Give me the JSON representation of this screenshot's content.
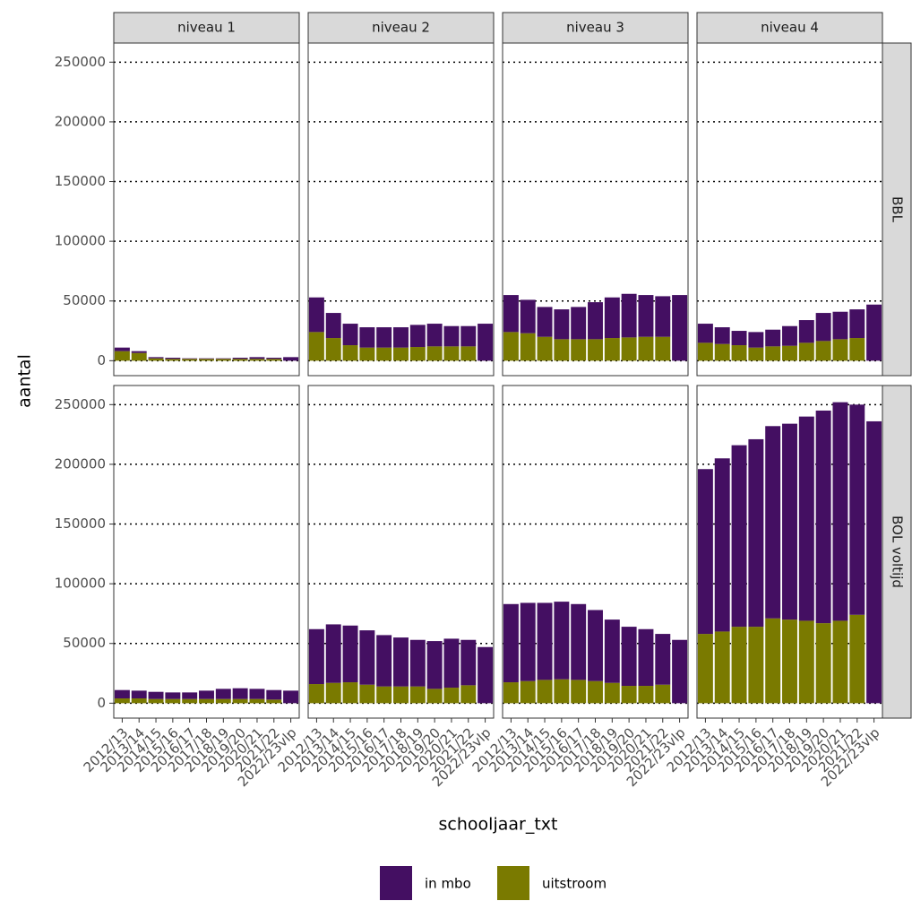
{
  "chart_data": {
    "type": "bar",
    "stacked": true,
    "xlabel": "schooljaar_txt",
    "ylabel": "aantal",
    "columns": [
      "niveau 1",
      "niveau 2",
      "niveau 3",
      "niveau 4"
    ],
    "rows": [
      "BBL",
      "BOL voltijd"
    ],
    "categories": [
      "2012/13",
      "2013/14",
      "2014/15",
      "2015/16",
      "2016/17",
      "2017/18",
      "2018/19",
      "2019/20",
      "2020/21",
      "2021/22",
      "2022/23vlp"
    ],
    "ylim": [
      -12500,
      266000
    ],
    "yticks": [
      0,
      50000,
      100000,
      150000,
      200000,
      250000
    ],
    "grid": true,
    "legend": "bottom",
    "series": [
      {
        "name": "in mbo",
        "color": "#440f62"
      },
      {
        "name": "uitstroom",
        "color": "#7a7a00"
      }
    ],
    "panels": [
      {
        "values": [
          [
            3000,
            1500,
            1000,
            1000,
            500,
            500,
            500,
            1000,
            1500,
            1000,
            3000
          ],
          [
            8000,
            6500,
            2000,
            1500,
            1500,
            1500,
            1500,
            1500,
            1500,
            1500,
            null
          ]
        ]
      },
      {
        "values": [
          [
            29000,
            21000,
            18000,
            17000,
            17000,
            17000,
            18500,
            19000,
            17000,
            17000,
            31000
          ],
          [
            24000,
            19000,
            13000,
            11000,
            11000,
            11000,
            11500,
            12000,
            12000,
            12000,
            null
          ]
        ]
      },
      {
        "values": [
          [
            31000,
            28000,
            25000,
            25000,
            27000,
            31000,
            34000,
            36500,
            35000,
            34000,
            55000
          ],
          [
            24000,
            23000,
            20000,
            18000,
            18000,
            18000,
            19000,
            19500,
            20000,
            20000,
            null
          ]
        ]
      },
      {
        "values": [
          [
            16000,
            14000,
            12000,
            13000,
            14000,
            16500,
            19000,
            23500,
            23000,
            24000,
            47000
          ],
          [
            15000,
            14000,
            13000,
            11000,
            12000,
            12500,
            15000,
            16500,
            18000,
            19000,
            null
          ]
        ]
      },
      {
        "values": [
          [
            7000,
            6500,
            6000,
            5500,
            5500,
            7000,
            8500,
            9000,
            8500,
            8000,
            10500
          ],
          [
            4000,
            4000,
            3500,
            3500,
            3500,
            3500,
            3500,
            3500,
            3500,
            3000,
            null
          ]
        ]
      },
      {
        "values": [
          [
            46000,
            49000,
            47500,
            45500,
            43000,
            41000,
            39000,
            40000,
            41000,
            38000,
            47000
          ],
          [
            16000,
            17000,
            17500,
            15500,
            14000,
            14000,
            14000,
            12000,
            13000,
            15000,
            null
          ]
        ]
      },
      {
        "values": [
          [
            65500,
            65500,
            64500,
            65000,
            63500,
            59500,
            53000,
            49500,
            47500,
            42500,
            53000
          ],
          [
            17500,
            18500,
            19500,
            20000,
            19500,
            18500,
            17000,
            14500,
            14500,
            15500,
            null
          ]
        ]
      },
      {
        "values": [
          [
            138000,
            145000,
            152000,
            157000,
            161000,
            164000,
            171000,
            178000,
            183000,
            176000,
            236000
          ],
          [
            58000,
            60000,
            64000,
            64000,
            71000,
            70000,
            69000,
            67000,
            69000,
            74000,
            null
          ]
        ]
      }
    ]
  }
}
